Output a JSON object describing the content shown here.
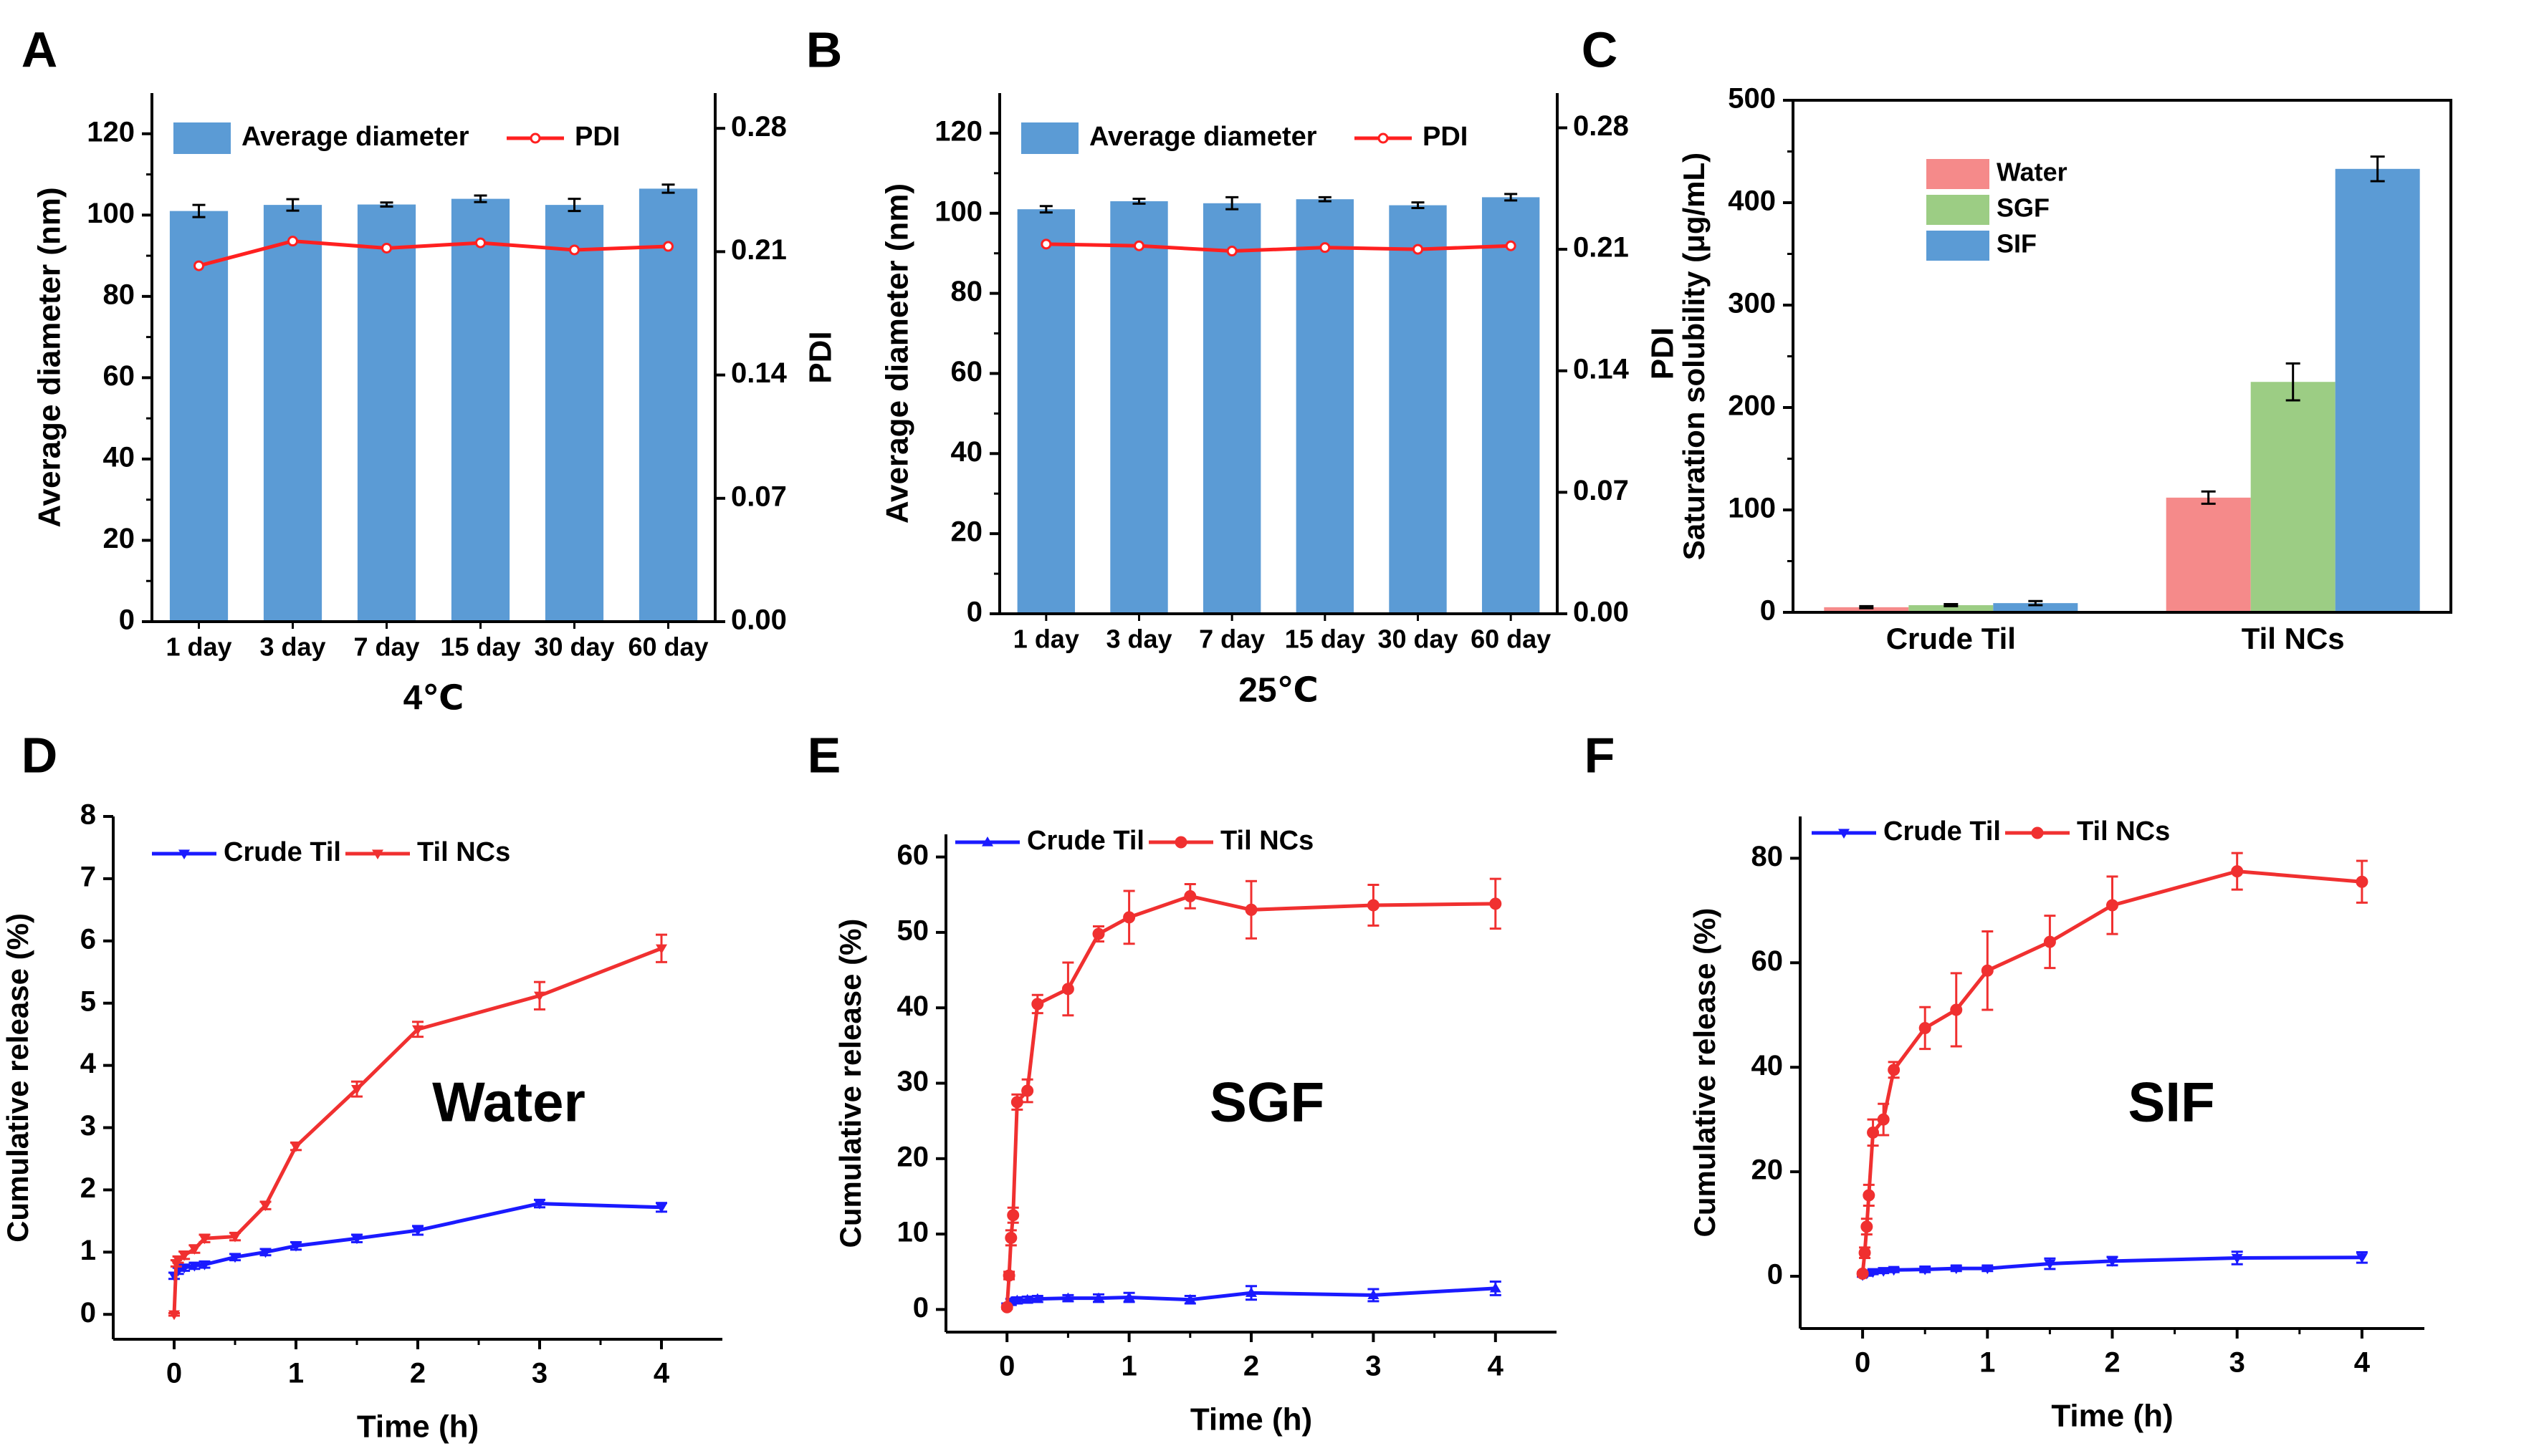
{
  "colors": {
    "bar_blue": "#5b9bd5",
    "pdi_red": "#ff2020",
    "water": "#f58a8a",
    "sgf": "#9ccd84",
    "sif": "#5b9bd5",
    "crude_blue": "#1a1aff",
    "ncs_red": "#f03030",
    "axis": "#000000"
  },
  "chart_data": [
    {
      "panel": "A",
      "type": "bar",
      "title": "",
      "xlabel": "4℃",
      "ylabel": "Average diameter (nm)",
      "y2label": "PDI",
      "ylim": [
        0,
        130
      ],
      "y2lim": [
        0,
        0.3
      ],
      "yticks": [
        "0",
        "20",
        "40",
        "60",
        "80",
        "100",
        "120"
      ],
      "y2ticks": [
        "0.00",
        "0.07",
        "0.14",
        "0.21",
        "0.28"
      ],
      "categories": [
        "1 day",
        "3 day",
        "7 day",
        "15 day",
        "30 day",
        "60 day"
      ],
      "legend": [
        "Average diameter",
        "PDI"
      ],
      "series": [
        {
          "name": "Average diameter",
          "values": [
            101.0,
            102.5,
            102.6,
            104.0,
            102.5,
            106.5
          ],
          "errors": [
            1.5,
            1.4,
            0.5,
            0.8,
            1.5,
            1.0
          ]
        },
        {
          "name": "PDI",
          "values": [
            0.202,
            0.216,
            0.212,
            0.215,
            0.211,
            0.213
          ]
        }
      ]
    },
    {
      "panel": "B",
      "type": "bar",
      "title": "",
      "xlabel": "25℃",
      "ylabel": "Average diameter (nm)",
      "y2label": "PDI",
      "ylim": [
        0,
        130
      ],
      "y2lim": [
        0,
        0.3
      ],
      "yticks": [
        "0",
        "20",
        "40",
        "60",
        "80",
        "100",
        "120"
      ],
      "y2ticks": [
        "0.00",
        "0.07",
        "0.14",
        "0.21",
        "0.28"
      ],
      "categories": [
        "1 day",
        "3 day",
        "7 day",
        "15 day",
        "30 day",
        "60 day"
      ],
      "legend": [
        "Average diameter",
        "PDI"
      ],
      "series": [
        {
          "name": "Average diameter",
          "values": [
            101.0,
            103.0,
            102.5,
            103.5,
            102.0,
            104.0
          ],
          "errors": [
            0.8,
            0.6,
            1.5,
            0.5,
            0.7,
            0.8
          ]
        },
        {
          "name": "PDI",
          "values": [
            0.213,
            0.212,
            0.209,
            0.211,
            0.21,
            0.212
          ]
        }
      ]
    },
    {
      "panel": "C",
      "type": "bar",
      "title": "",
      "xlabel": "",
      "ylabel": "Saturation solubility (μg/mL)",
      "ylim": [
        0,
        500
      ],
      "yticks": [
        "0",
        "100",
        "200",
        "300",
        "400",
        "500"
      ],
      "categories": [
        "Crude Til",
        "Til NCs"
      ],
      "legend": [
        "Water",
        "SGF",
        "SIF"
      ],
      "series": [
        {
          "name": "Water",
          "values": [
            5,
            112
          ],
          "errors": [
            1,
            6
          ]
        },
        {
          "name": "SGF",
          "values": [
            7,
            225
          ],
          "errors": [
            1,
            18
          ]
        },
        {
          "name": "SIF",
          "values": [
            9,
            433
          ],
          "errors": [
            2,
            12
          ]
        }
      ]
    },
    {
      "panel": "D",
      "type": "line",
      "title": "Water",
      "xlabel": "Time (h)",
      "ylabel": "Cumulative release (%)",
      "xlim": [
        -0.5,
        4.5
      ],
      "ylim": [
        -0.4,
        8
      ],
      "xticks": [
        "0",
        "1",
        "2",
        "3",
        "4"
      ],
      "yticks": [
        "0",
        "1",
        "2",
        "3",
        "4",
        "5",
        "6",
        "7",
        "8"
      ],
      "legend": [
        "Crude Til",
        "Til NCs"
      ],
      "series": [
        {
          "name": "Crude Til",
          "x": [
            0,
            0.033,
            0.083,
            0.167,
            0.25,
            0.5,
            0.75,
            1,
            1.5,
            2,
            3,
            4
          ],
          "values": [
            0.62,
            0.7,
            0.75,
            0.78,
            0.8,
            0.92,
            1.0,
            1.1,
            1.22,
            1.35,
            1.78,
            1.72
          ],
          "errors": [
            0.05,
            0.05,
            0.05,
            0.05,
            0.05,
            0.05,
            0.05,
            0.06,
            0.06,
            0.07,
            0.06,
            0.07
          ]
        },
        {
          "name": "Til NCs",
          "x": [
            0,
            0.017,
            0.033,
            0.083,
            0.167,
            0.25,
            0.5,
            0.75,
            1,
            1.5,
            2,
            3,
            4
          ],
          "values": [
            0.0,
            0.82,
            0.88,
            0.95,
            1.05,
            1.22,
            1.25,
            1.75,
            2.7,
            3.62,
            4.58,
            5.12,
            5.88
          ],
          "errors": [
            0.02,
            0.05,
            0.05,
            0.06,
            0.06,
            0.06,
            0.06,
            0.06,
            0.06,
            0.12,
            0.12,
            0.22,
            0.22
          ]
        }
      ]
    },
    {
      "panel": "E",
      "type": "line",
      "title": "SGF",
      "xlabel": "Time (h)",
      "ylabel": "Cumulative release (%)",
      "xlim": [
        -0.5,
        4.5
      ],
      "ylim": [
        -3,
        63
      ],
      "xticks": [
        "0",
        "1",
        "2",
        "3",
        "4"
      ],
      "yticks": [
        "0",
        "10",
        "20",
        "30",
        "40",
        "50",
        "60"
      ],
      "legend": [
        "Crude Til",
        "Til NCs"
      ],
      "series": [
        {
          "name": "Crude Til",
          "x": [
            0,
            0.033,
            0.083,
            0.167,
            0.25,
            0.5,
            0.75,
            1,
            1.5,
            2,
            3,
            4
          ],
          "values": [
            0.5,
            1.0,
            1.2,
            1.3,
            1.4,
            1.5,
            1.5,
            1.6,
            1.3,
            2.2,
            1.9,
            2.8
          ],
          "errors": [
            0.3,
            0.4,
            0.4,
            0.4,
            0.4,
            0.4,
            0.5,
            0.6,
            0.5,
            0.9,
            0.8,
            0.9
          ]
        },
        {
          "name": "Til NCs",
          "x": [
            0,
            0.017,
            0.033,
            0.05,
            0.083,
            0.167,
            0.25,
            0.5,
            0.75,
            1,
            1.5,
            2,
            3,
            4
          ],
          "values": [
            0.3,
            4.5,
            9.5,
            12.5,
            27.5,
            29.0,
            40.5,
            42.5,
            49.8,
            52.0,
            54.8,
            53.0,
            53.6,
            53.8
          ],
          "errors": [
            0.2,
            0.5,
            1.0,
            1.0,
            1.0,
            1.5,
            1.2,
            3.5,
            1.0,
            3.5,
            1.6,
            3.8,
            2.7,
            3.3
          ]
        }
      ]
    },
    {
      "panel": "F",
      "type": "line",
      "title": "SIF",
      "xlabel": "Time (h)",
      "ylabel": "Cumulative release (%)",
      "xlim": [
        -0.5,
        4.5
      ],
      "ylim": [
        -10,
        88
      ],
      "xticks": [
        "0",
        "1",
        "2",
        "3",
        "4"
      ],
      "yticks": [
        "0",
        "20",
        "40",
        "60",
        "80"
      ],
      "legend": [
        "Crude Til",
        "Til NCs"
      ],
      "series": [
        {
          "name": "Crude Til",
          "x": [
            0,
            0.033,
            0.083,
            0.167,
            0.25,
            0.5,
            0.75,
            1,
            1.5,
            2,
            3,
            4
          ],
          "values": [
            0.2,
            0.5,
            0.8,
            1.0,
            1.2,
            1.3,
            1.5,
            1.5,
            2.4,
            2.9,
            3.5,
            3.6
          ],
          "errors": [
            0.3,
            0.4,
            0.4,
            0.4,
            0.4,
            0.5,
            0.5,
            0.5,
            1.0,
            0.8,
            1.2,
            1.0
          ]
        },
        {
          "name": "Til NCs",
          "x": [
            0,
            0.017,
            0.033,
            0.05,
            0.083,
            0.167,
            0.25,
            0.5,
            0.75,
            1,
            1.5,
            2,
            3,
            4
          ],
          "values": [
            0.5,
            4.5,
            9.5,
            15.5,
            27.5,
            30.0,
            39.5,
            47.5,
            51.0,
            58.5,
            64.0,
            71.0,
            77.5,
            75.5
          ],
          "errors": [
            0.3,
            1.0,
            1.5,
            2.0,
            2.5,
            3.0,
            1.5,
            4.0,
            7.0,
            7.5,
            5.0,
            5.5,
            3.5,
            4.0
          ]
        }
      ]
    }
  ]
}
